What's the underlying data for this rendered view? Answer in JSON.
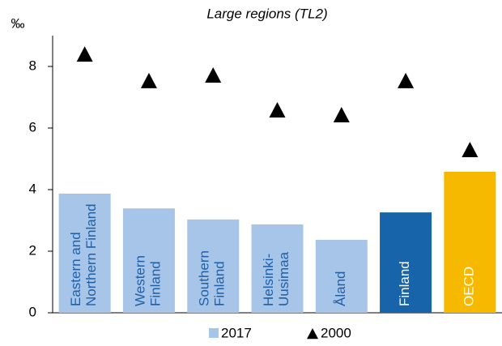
{
  "chart_data": {
    "type": "bar",
    "subtitle": "Large regions (TL2)",
    "y_label": "‰",
    "categories": [
      "Eastern and\nNorthern Finland",
      "Western\nFinland",
      "Southern\nFinland",
      "Helsinki-\nUusimaa",
      "Åland",
      "Finland",
      "OECD"
    ],
    "series": [
      {
        "name": "2017",
        "color": "#a6c5e8",
        "colors": [
          "#a6c5e8",
          "#a6c5e8",
          "#a6c5e8",
          "#a6c5e8",
          "#a6c5e8",
          "#1764ab",
          "#f7b900"
        ],
        "values": [
          3.87,
          3.39,
          3.03,
          2.87,
          2.37,
          3.26,
          4.58
        ]
      },
      {
        "name": "2000",
        "color": "#000000",
        "marker": "triangle",
        "values": [
          8.39,
          7.53,
          7.71,
          6.58,
          6.42,
          7.53,
          5.29
        ]
      }
    ],
    "ylim": [
      0,
      9
    ],
    "yticks": [
      0,
      2,
      4,
      6,
      8
    ],
    "grid": false
  }
}
